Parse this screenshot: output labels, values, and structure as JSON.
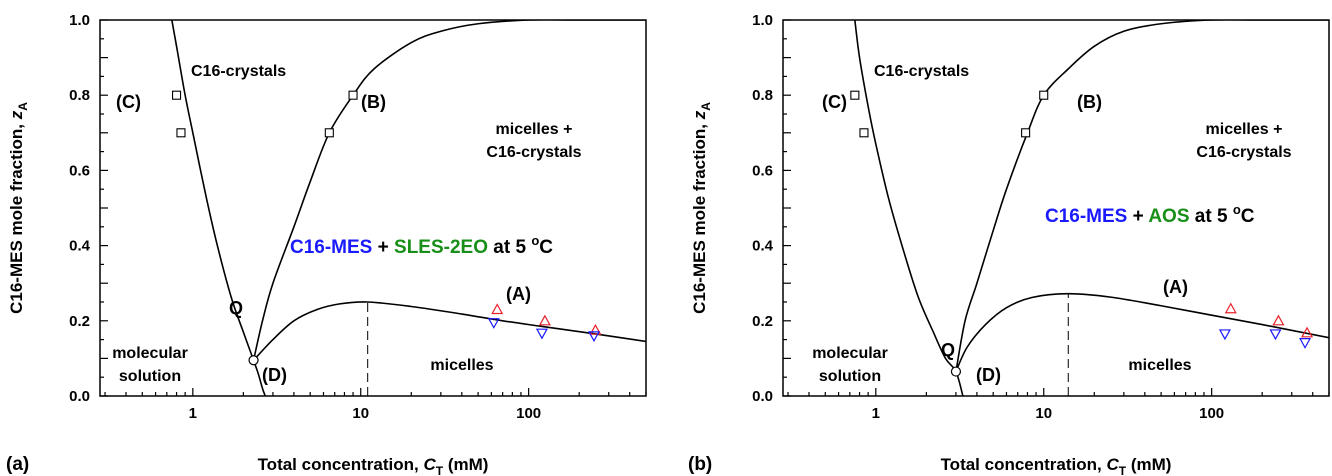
{
  "colors": {
    "blue": "#1a1aff",
    "red": "#e8202a",
    "green": "#188f18"
  },
  "chart_data": [
    {
      "type": "line",
      "panel_label": "(a)",
      "xlabel": {
        "prefix": "Total concentration, ",
        "var": "C",
        "sub": "T",
        "suffix": " (mM)"
      },
      "ylabel": {
        "prefix": "C16-MES mole fraction, ",
        "var": "z",
        "sub": "A"
      },
      "xscale": "log",
      "xlim": [
        0.28,
        500
      ],
      "ylim": [
        0,
        1.0
      ],
      "xtick_labels": [
        "1",
        "10",
        "100"
      ],
      "xtick_values": [
        1,
        10,
        100
      ],
      "ytick_labels": [
        "0.0",
        "0.2",
        "0.4",
        "0.6",
        "0.8",
        "1.0"
      ],
      "ytick_values": [
        0,
        0.2,
        0.4,
        0.6,
        0.8,
        1.0
      ],
      "system": {
        "a": "C16-MES",
        "plus": " + ",
        "b": "SLES-2EO",
        "suffix": " at 5 ",
        "deg": "o",
        "unit": "C"
      },
      "regions": [
        "C16-crystals",
        "micelles +",
        "C16-crystals",
        "molecular",
        "solution",
        "micelles"
      ],
      "curve_labels": [
        "(A)",
        "(B)",
        "(C)",
        "(D)",
        "Q"
      ],
      "curves": {
        "C": {
          "x": [
            0.75,
            0.8,
            0.9,
            1.0,
            1.2,
            1.4,
            1.7,
            2.0,
            2.3
          ],
          "y": [
            1.0,
            0.93,
            0.8,
            0.7,
            0.53,
            0.4,
            0.26,
            0.17,
            0.095
          ]
        },
        "B": {
          "x": [
            2.3,
            2.6,
            3.0,
            4.0,
            5.0,
            6.5,
            9.0,
            12,
            20,
            30,
            50,
            100,
            200,
            500
          ],
          "y": [
            0.095,
            0.2,
            0.3,
            0.45,
            0.57,
            0.7,
            0.8,
            0.87,
            0.94,
            0.97,
            0.99,
            1.0,
            1.0,
            1.0
          ]
        },
        "D": {
          "x": [
            2.3,
            2.45,
            2.6,
            2.7
          ],
          "y": [
            0.095,
            0.06,
            0.02,
            0.0
          ]
        },
        "A": {
          "x": [
            2.3,
            3.0,
            4.0,
            5.5,
            7.5,
            11,
            20,
            40,
            70,
            120,
            250,
            500
          ],
          "y": [
            0.095,
            0.15,
            0.2,
            0.23,
            0.245,
            0.25,
            0.238,
            0.218,
            0.2,
            0.185,
            0.165,
            0.145
          ]
        }
      },
      "q_point": {
        "x": 2.3,
        "y": 0.095
      },
      "dashed_line": {
        "x": 11,
        "y0": 0,
        "y1": 0.25
      },
      "markers": {
        "squares": {
          "x": [
            0.8,
            0.85,
            6.5,
            9.0
          ],
          "y": [
            0.8,
            0.7,
            0.7,
            0.8
          ]
        },
        "up_triangles_red": {
          "x": [
            65,
            125,
            250
          ],
          "y": [
            0.23,
            0.2,
            0.175
          ]
        },
        "down_triangles_blue": {
          "x": [
            62,
            120,
            245
          ],
          "y": [
            0.195,
            0.167,
            0.16
          ]
        }
      }
    },
    {
      "type": "line",
      "panel_label": "(b)",
      "xlabel": {
        "prefix": "Total concentration, ",
        "var": "C",
        "sub": "T",
        "suffix": " (mM)"
      },
      "ylabel": {
        "prefix": "C16-MES mole fraction, ",
        "var": "z",
        "sub": "A"
      },
      "xscale": "log",
      "xlim": [
        0.28,
        500
      ],
      "ylim": [
        0,
        1.0
      ],
      "xtick_labels": [
        "1",
        "10",
        "100"
      ],
      "xtick_values": [
        1,
        10,
        100
      ],
      "ytick_labels": [
        "0.0",
        "0.2",
        "0.4",
        "0.6",
        "0.8",
        "1.0"
      ],
      "ytick_values": [
        0,
        0.2,
        0.4,
        0.6,
        0.8,
        1.0
      ],
      "system": {
        "a": "C16-MES",
        "plus": " + ",
        "b": "AOS",
        "suffix": " at 5 ",
        "deg": "o",
        "unit": "C"
      },
      "regions": [
        "C16-crystals",
        "micelles +",
        "C16-crystals",
        "molecular",
        "solution",
        "micelles"
      ],
      "curve_labels": [
        "(A)",
        "(B)",
        "(C)",
        "(D)",
        "Q"
      ],
      "curves": {
        "C": {
          "x": [
            0.75,
            0.8,
            0.9,
            1.0,
            1.2,
            1.5,
            1.8,
            2.2,
            2.6,
            3.0,
            3.3
          ],
          "y": [
            1.0,
            0.9,
            0.77,
            0.67,
            0.52,
            0.37,
            0.26,
            0.17,
            0.1,
            0.065,
            0.0
          ]
        },
        "B": {
          "x": [
            3.0,
            3.4,
            4.0,
            5.0,
            6.0,
            8.0,
            10,
            14,
            20,
            30,
            50,
            100,
            200,
            500
          ],
          "y": [
            0.065,
            0.2,
            0.3,
            0.44,
            0.55,
            0.7,
            0.8,
            0.87,
            0.93,
            0.97,
            0.99,
            1.0,
            1.0,
            1.0
          ]
        },
        "A": {
          "x": [
            3.0,
            3.5,
            4.5,
            6.0,
            8.5,
            14,
            25,
            50,
            100,
            200,
            500
          ],
          "y": [
            0.065,
            0.13,
            0.19,
            0.235,
            0.262,
            0.272,
            0.263,
            0.24,
            0.215,
            0.19,
            0.155
          ]
        }
      },
      "q_point": {
        "x": 3.0,
        "y": 0.065
      },
      "dashed_line": {
        "x": 14,
        "y0": 0,
        "y1": 0.272
      },
      "markers": {
        "squares": {
          "x": [
            0.75,
            0.85,
            7.8,
            10
          ],
          "y": [
            0.8,
            0.7,
            0.7,
            0.8
          ]
        },
        "up_triangles_red": {
          "x": [
            130,
            250,
            370
          ],
          "y": [
            0.232,
            0.2,
            0.168
          ]
        },
        "down_triangles_blue": {
          "x": [
            120,
            240,
            360
          ],
          "y": [
            0.165,
            0.165,
            0.142
          ]
        }
      }
    }
  ]
}
